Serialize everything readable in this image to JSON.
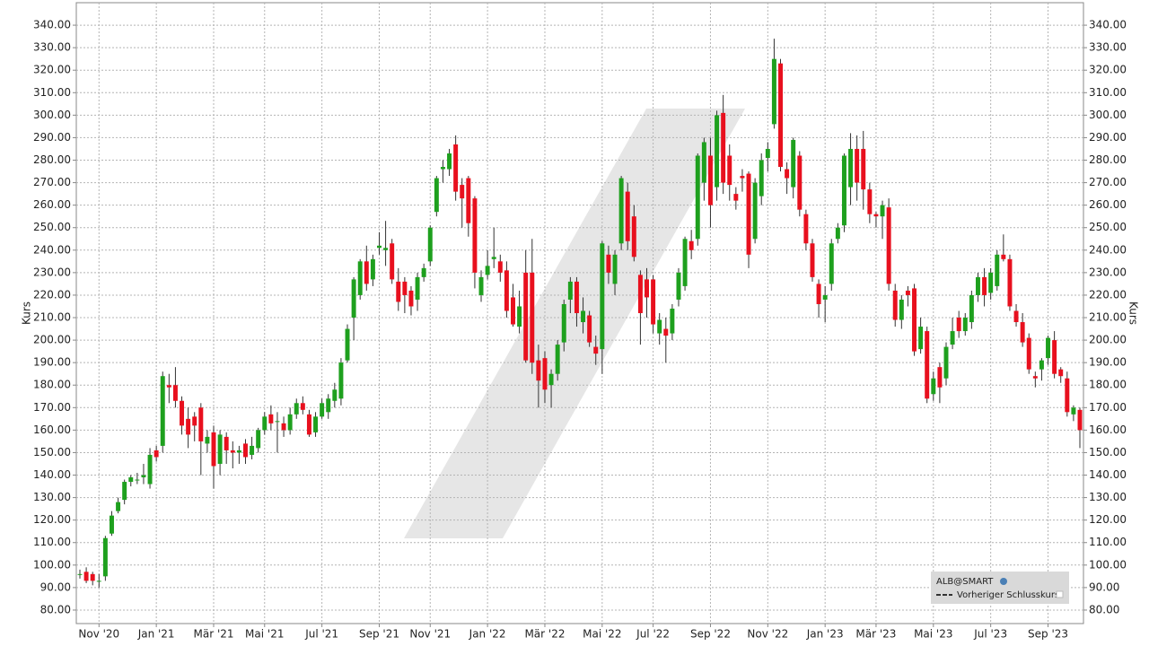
{
  "chart_data": {
    "type": "candlestick",
    "ylabel": "Kurs",
    "legend_title": "ALB@SMART",
    "legend_entry": "Vorheriger Schlusskurs",
    "up_color": "#1ea01e",
    "down_color": "#e8101e",
    "grid": true,
    "ylim": [
      74,
      350
    ],
    "yticks": [
      {
        "value": 80,
        "label": "80.00"
      },
      {
        "value": 90,
        "label": "90.00"
      },
      {
        "value": 100,
        "label": "100.00"
      },
      {
        "value": 110,
        "label": "110.00"
      },
      {
        "value": 120,
        "label": "120.00"
      },
      {
        "value": 130,
        "label": "130.00"
      },
      {
        "value": 140,
        "label": "140.00"
      },
      {
        "value": 150,
        "label": "150.00"
      },
      {
        "value": 160,
        "label": "160.00"
      },
      {
        "value": 170,
        "label": "170.00"
      },
      {
        "value": 180,
        "label": "180.00"
      },
      {
        "value": 190,
        "label": "190.00"
      },
      {
        "value": 200,
        "label": "200.00"
      },
      {
        "value": 210,
        "label": "210.00"
      },
      {
        "value": 220,
        "label": "220.00"
      },
      {
        "value": 230,
        "label": "230.00"
      },
      {
        "value": 240,
        "label": "240.00"
      },
      {
        "value": 250,
        "label": "250.00"
      },
      {
        "value": 260,
        "label": "260.00"
      },
      {
        "value": 270,
        "label": "270.00"
      },
      {
        "value": 280,
        "label": "280.00"
      },
      {
        "value": 290,
        "label": "290.00"
      },
      {
        "value": 300,
        "label": "300.00"
      },
      {
        "value": 310,
        "label": "310.00"
      },
      {
        "value": 320,
        "label": "320.00"
      },
      {
        "value": 330,
        "label": "330.00"
      },
      {
        "value": 340,
        "label": "340.00"
      }
    ],
    "categories": [
      null,
      null,
      null,
      "Nov '20",
      null,
      null,
      null,
      null,
      null,
      null,
      null,
      null,
      "Jan '21",
      null,
      null,
      null,
      null,
      null,
      null,
      null,
      null,
      "Mär '21",
      null,
      null,
      null,
      null,
      null,
      null,
      null,
      "Mai '21",
      null,
      null,
      null,
      null,
      null,
      null,
      null,
      null,
      "Jul '21",
      null,
      null,
      null,
      null,
      null,
      null,
      null,
      null,
      "Sep '21",
      null,
      null,
      null,
      null,
      null,
      null,
      null,
      "Nov '21",
      null,
      null,
      null,
      null,
      null,
      null,
      null,
      null,
      "Jan '22",
      null,
      null,
      null,
      null,
      null,
      null,
      null,
      null,
      "Mär '22",
      null,
      null,
      null,
      null,
      null,
      null,
      null,
      null,
      "Mai '22",
      null,
      null,
      null,
      null,
      null,
      null,
      null,
      "Jul '22",
      null,
      null,
      null,
      null,
      null,
      null,
      null,
      null,
      "Sep '22",
      null,
      null,
      null,
      null,
      null,
      null,
      null,
      null,
      "Nov '22",
      null,
      null,
      null,
      null,
      null,
      null,
      null,
      null,
      "Jan '23",
      null,
      null,
      null,
      null,
      null,
      null,
      null,
      "Mär '23",
      null,
      null,
      null,
      null,
      null,
      null,
      null,
      null,
      "Mai '23",
      null,
      null,
      null,
      null,
      null,
      null,
      null,
      null,
      "Jul '23",
      null,
      null,
      null,
      null,
      null,
      null,
      null,
      null,
      "Sep '23",
      null,
      null,
      null,
      null,
      null
    ],
    "open": [
      96,
      97,
      96,
      93,
      95,
      114,
      124,
      129,
      137,
      138,
      139,
      136,
      151,
      153,
      180,
      180,
      173,
      165,
      166,
      170,
      154,
      159,
      145,
      157,
      151,
      150,
      154,
      149,
      152,
      160,
      167,
      164,
      163,
      160,
      167,
      172,
      167,
      159,
      166,
      168,
      173,
      174,
      191,
      210,
      220,
      235,
      227,
      241,
      240,
      243,
      226,
      226,
      222,
      218,
      228,
      235,
      257,
      276,
      276,
      287,
      269,
      272,
      263,
      220,
      229,
      236,
      235,
      231,
      219,
      206,
      230,
      230,
      191,
      192,
      180,
      185,
      199,
      218,
      226,
      208,
      211,
      197,
      196,
      238,
      225,
      243,
      266,
      255,
      229,
      227,
      227,
      203,
      205,
      203,
      218,
      224,
      244,
      245,
      270,
      282,
      268,
      301,
      282,
      265,
      273,
      274,
      245,
      264,
      281,
      296,
      323,
      276,
      268,
      282,
      256,
      243,
      225,
      218,
      225,
      245,
      251,
      268,
      285,
      285,
      267,
      256,
      255,
      259,
      222,
      209,
      222,
      223,
      196,
      204,
      176,
      188,
      183,
      198,
      210,
      204,
      208,
      220,
      228,
      221,
      224,
      238,
      236,
      213,
      208,
      201,
      184,
      187,
      192,
      200,
      187,
      183,
      167,
      169
    ],
    "high": [
      98,
      99,
      97,
      96,
      113,
      124,
      130,
      138,
      140,
      141,
      145,
      152,
      153,
      186,
      185,
      188,
      175,
      170,
      168,
      172,
      160,
      162,
      160,
      159,
      155,
      153,
      156,
      157,
      161,
      168,
      171,
      168,
      166,
      170,
      174,
      175,
      169,
      168,
      174,
      176,
      181,
      192,
      207,
      228,
      236,
      242,
      238,
      248,
      253,
      245,
      232,
      228,
      224,
      230,
      234,
      251,
      273,
      280,
      285,
      291,
      272,
      273,
      264,
      231,
      240,
      250,
      238,
      235,
      225,
      222,
      240,
      245,
      198,
      195,
      187,
      200,
      218,
      228,
      228,
      219,
      213,
      202,
      244,
      242,
      240,
      273,
      270,
      260,
      231,
      232,
      229,
      212,
      210,
      216,
      232,
      246,
      249,
      283,
      290,
      290,
      302,
      309,
      287,
      268,
      276,
      275,
      272,
      283,
      288,
      334,
      325,
      279,
      290,
      284,
      258,
      245,
      227,
      224,
      245,
      252,
      283,
      292,
      291,
      293,
      270,
      257,
      262,
      263,
      225,
      220,
      224,
      225,
      210,
      206,
      186,
      190,
      199,
      210,
      213,
      212,
      222,
      230,
      232,
      232,
      240,
      247,
      238,
      216,
      212,
      203,
      186,
      192,
      202,
      204,
      188,
      186,
      171,
      170
    ],
    "low": [
      94,
      92,
      91,
      90,
      93,
      113,
      123,
      127,
      135,
      136,
      136,
      134,
      146,
      150,
      172,
      170,
      158,
      152,
      155,
      140,
      150,
      134,
      140,
      145,
      143,
      145,
      145,
      147,
      150,
      158,
      160,
      150,
      157,
      158,
      165,
      167,
      157,
      157,
      165,
      165,
      170,
      171,
      190,
      200,
      218,
      222,
      224,
      238,
      233,
      225,
      213,
      212,
      211,
      213,
      226,
      233,
      255,
      270,
      273,
      262,
      250,
      246,
      223,
      217,
      227,
      232,
      226,
      210,
      206,
      203,
      190,
      185,
      170,
      172,
      170,
      182,
      195,
      212,
      206,
      203,
      197,
      189,
      185,
      225,
      220,
      240,
      240,
      235,
      198,
      210,
      203,
      198,
      190,
      200,
      215,
      222,
      236,
      242,
      262,
      250,
      262,
      265,
      262,
      258,
      266,
      232,
      243,
      260,
      275,
      294,
      275,
      265,
      263,
      255,
      240,
      226,
      210,
      208,
      222,
      243,
      248,
      260,
      262,
      258,
      252,
      250,
      245,
      222,
      206,
      205,
      215,
      193,
      194,
      172,
      173,
      172,
      180,
      196,
      201,
      202,
      205,
      217,
      215,
      218,
      222,
      235,
      213,
      206,
      197,
      185,
      179,
      182,
      189,
      183,
      181,
      166,
      164,
      152
    ],
    "close": [
      96,
      93,
      93,
      93,
      112,
      122,
      128,
      137,
      139,
      138,
      140,
      149,
      148,
      184,
      179,
      173,
      162,
      158,
      162,
      155,
      157,
      144,
      158,
      151,
      150,
      151,
      148,
      153,
      160,
      166,
      163,
      164,
      160,
      167,
      172,
      169,
      158,
      166,
      172,
      174,
      178,
      190,
      205,
      227,
      235,
      225,
      236,
      242,
      241,
      227,
      217,
      220,
      215,
      228,
      232,
      250,
      272,
      277,
      283,
      266,
      263,
      252,
      230,
      228,
      233,
      237,
      230,
      213,
      207,
      215,
      191,
      190,
      182,
      178,
      185,
      198,
      216,
      226,
      212,
      213,
      199,
      194,
      243,
      230,
      238,
      272,
      244,
      237,
      212,
      219,
      207,
      209,
      202,
      214,
      230,
      245,
      240,
      282,
      288,
      260,
      300,
      270,
      269,
      262,
      272,
      238,
      270,
      280,
      285,
      325,
      277,
      272,
      289,
      258,
      243,
      228,
      216,
      220,
      243,
      250,
      282,
      285,
      270,
      267,
      256,
      255,
      260,
      225,
      209,
      218,
      220,
      195,
      206,
      174,
      183,
      179,
      197,
      204,
      204,
      210,
      220,
      228,
      220,
      230,
      238,
      236,
      215,
      208,
      199,
      187,
      183,
      191,
      201,
      185,
      184,
      168,
      170,
      160
    ]
  }
}
